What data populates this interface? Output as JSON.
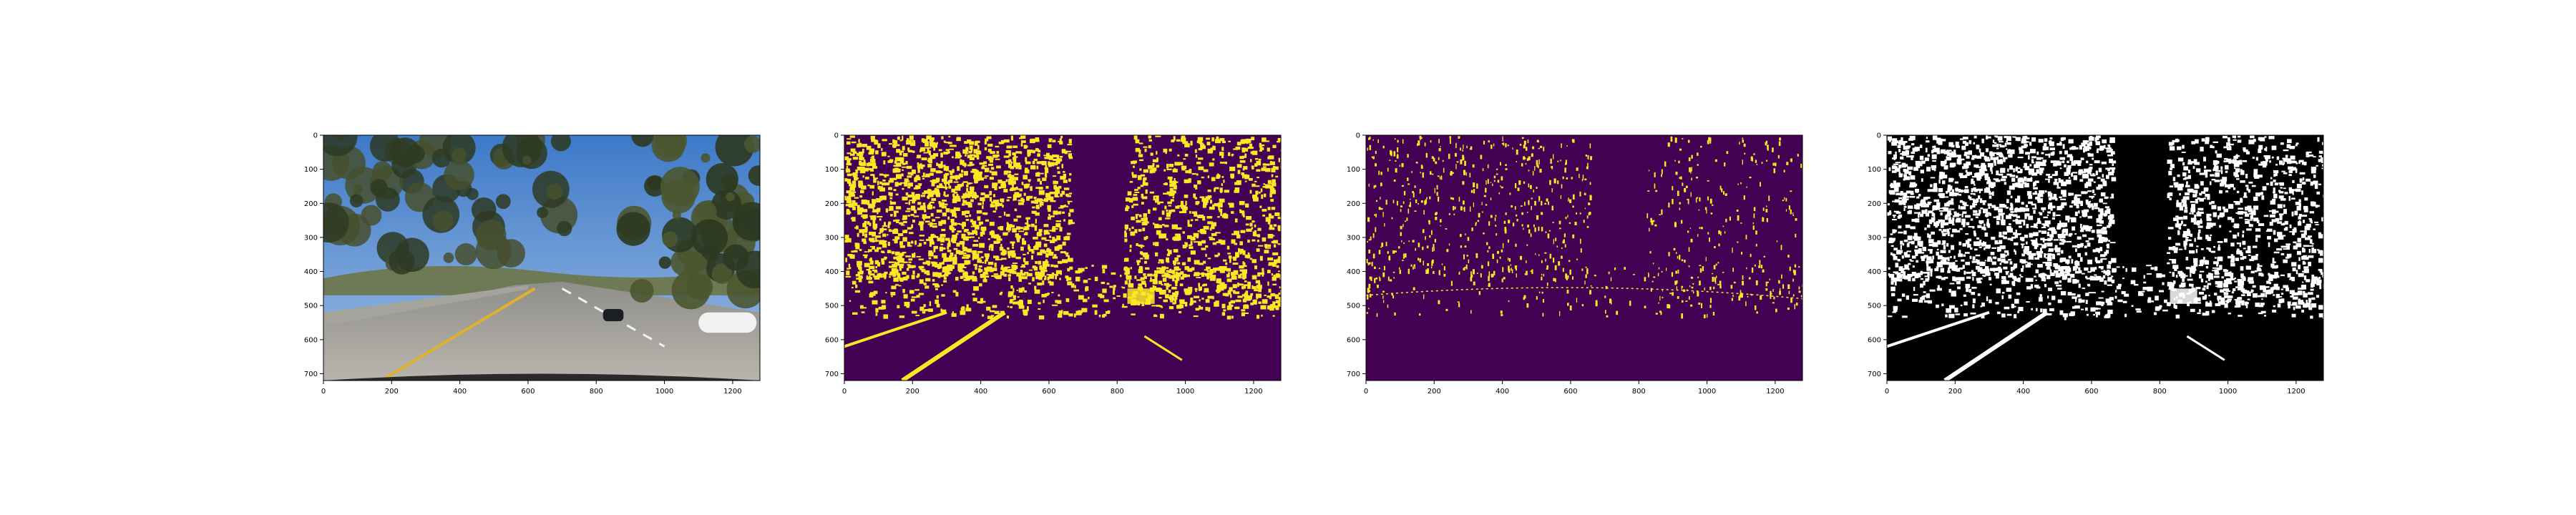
{
  "chart_data": [
    {
      "type": "image",
      "xlim": [
        0,
        1280
      ],
      "ylim": [
        720,
        0
      ],
      "x_ticks": [
        0,
        200,
        400,
        600,
        800,
        1000,
        1200
      ],
      "y_ticks": [
        0,
        100,
        200,
        300,
        400,
        500,
        600,
        700
      ],
      "content": "photo"
    },
    {
      "type": "image",
      "xlim": [
        0,
        1280
      ],
      "ylim": [
        720,
        0
      ],
      "x_ticks": [
        0,
        200,
        400,
        600,
        800,
        1000,
        1200
      ],
      "y_ticks": [
        0,
        100,
        200,
        300,
        400,
        500,
        600,
        700
      ],
      "content": "binary",
      "colors": {
        "background": "#440154",
        "foreground": "#fde725"
      }
    },
    {
      "type": "image",
      "xlim": [
        0,
        1280
      ],
      "ylim": [
        720,
        0
      ],
      "x_ticks": [
        0,
        200,
        400,
        600,
        800,
        1000,
        1200
      ],
      "y_ticks": [
        0,
        100,
        200,
        300,
        400,
        500,
        600,
        700
      ],
      "content": "binary-sparse",
      "colors": {
        "background": "#440154",
        "foreground": "#fde725"
      }
    },
    {
      "type": "image",
      "xlim": [
        0,
        1280
      ],
      "ylim": [
        720,
        0
      ],
      "x_ticks": [
        0,
        200,
        400,
        600,
        800,
        1000,
        1200
      ],
      "y_ticks": [
        0,
        100,
        200,
        300,
        400,
        500,
        600,
        700
      ],
      "content": "binary",
      "colors": {
        "background": "#000000",
        "foreground": "#ffffff"
      }
    }
  ]
}
